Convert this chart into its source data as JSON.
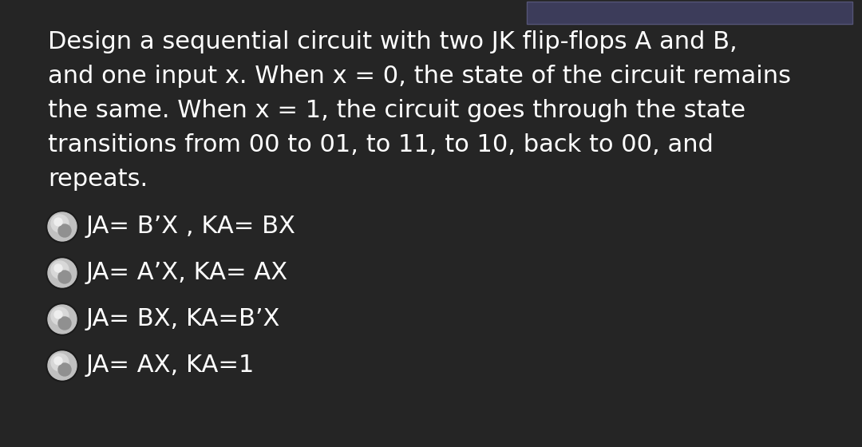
{
  "background_color": "#252525",
  "top_bar_color": "#3a3a5c",
  "paragraph_text": "Design a sequential circuit with two JK flip-flops A and B,\nand one input x. When x = 0, the state of the circuit remains\nthe same. When x = 1, the circuit goes through the state\ntransitions from 00 to 01, to 11, to 10, back to 00, and\nrepeats.",
  "options": [
    "JA= B’X , KA= BX",
    "JA= A’X, KA= AX",
    "JA= BX, KA=B’X",
    "JA= AX, KA=1"
  ],
  "text_color": "#ffffff",
  "para_fontsize": 22,
  "option_fontsize": 22,
  "figwidth": 10.8,
  "figheight": 5.6,
  "dpi": 100
}
